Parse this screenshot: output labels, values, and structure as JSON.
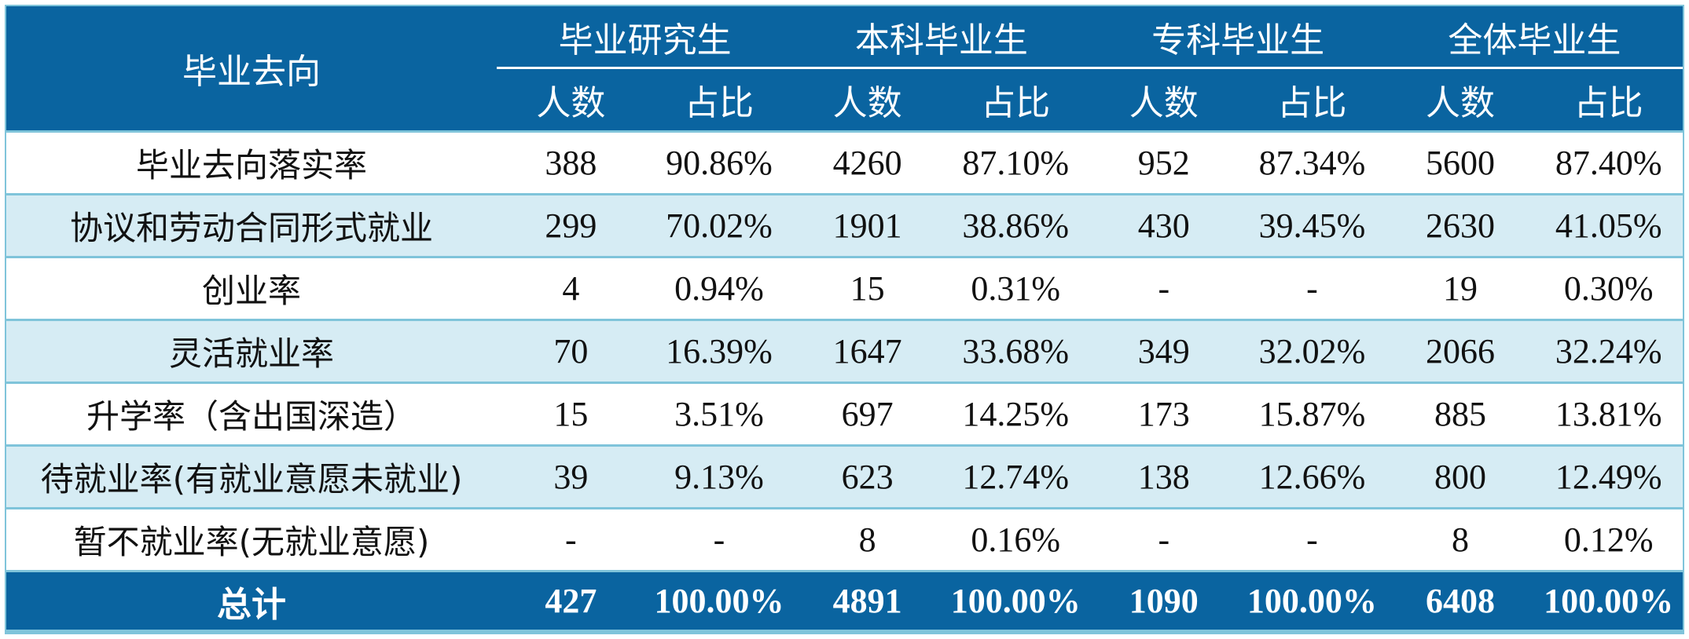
{
  "table": {
    "header_label": "毕业去向",
    "groups": [
      "毕业研究生",
      "本科毕业生",
      "专科毕业生",
      "全体毕业生"
    ],
    "subheaders": [
      "人数",
      "占比",
      "人数",
      "占比",
      "人数",
      "占比",
      "人数",
      "占比"
    ],
    "rows": [
      {
        "label": "毕业去向落实率",
        "cells": [
          "388",
          "90.86%",
          "4260",
          "87.10%",
          "952",
          "87.34%",
          "5600",
          "87.40%"
        ]
      },
      {
        "label": "协议和劳动合同形式就业",
        "cells": [
          "299",
          "70.02%",
          "1901",
          "38.86%",
          "430",
          "39.45%",
          "2630",
          "41.05%"
        ]
      },
      {
        "label": "创业率",
        "cells": [
          "4",
          "0.94%",
          "15",
          "0.31%",
          "-",
          "-",
          "19",
          "0.30%"
        ]
      },
      {
        "label": "灵活就业率",
        "cells": [
          "70",
          "16.39%",
          "1647",
          "33.68%",
          "349",
          "32.02%",
          "2066",
          "32.24%"
        ]
      },
      {
        "label": "升学率（含出国深造）",
        "cells": [
          "15",
          "3.51%",
          "697",
          "14.25%",
          "173",
          "15.87%",
          "885",
          "13.81%"
        ]
      },
      {
        "label": "待就业率(有就业意愿未就业)",
        "cells": [
          "39",
          "9.13%",
          "623",
          "12.74%",
          "138",
          "12.66%",
          "800",
          "12.49%"
        ]
      },
      {
        "label": "暂不就业率(无就业意愿)",
        "cells": [
          "-",
          "-",
          "8",
          "0.16%",
          "-",
          "-",
          "8",
          "0.12%"
        ]
      }
    ],
    "total": {
      "label": "总计",
      "cells": [
        "427",
        "100.00%",
        "4891",
        "100.00%",
        "1090",
        "100.00%",
        "6408",
        "100.00%"
      ]
    }
  },
  "colors": {
    "header_bg": "#0a64a0",
    "stripe_bg": "#d6ecf4",
    "border": "#7fc4da"
  }
}
